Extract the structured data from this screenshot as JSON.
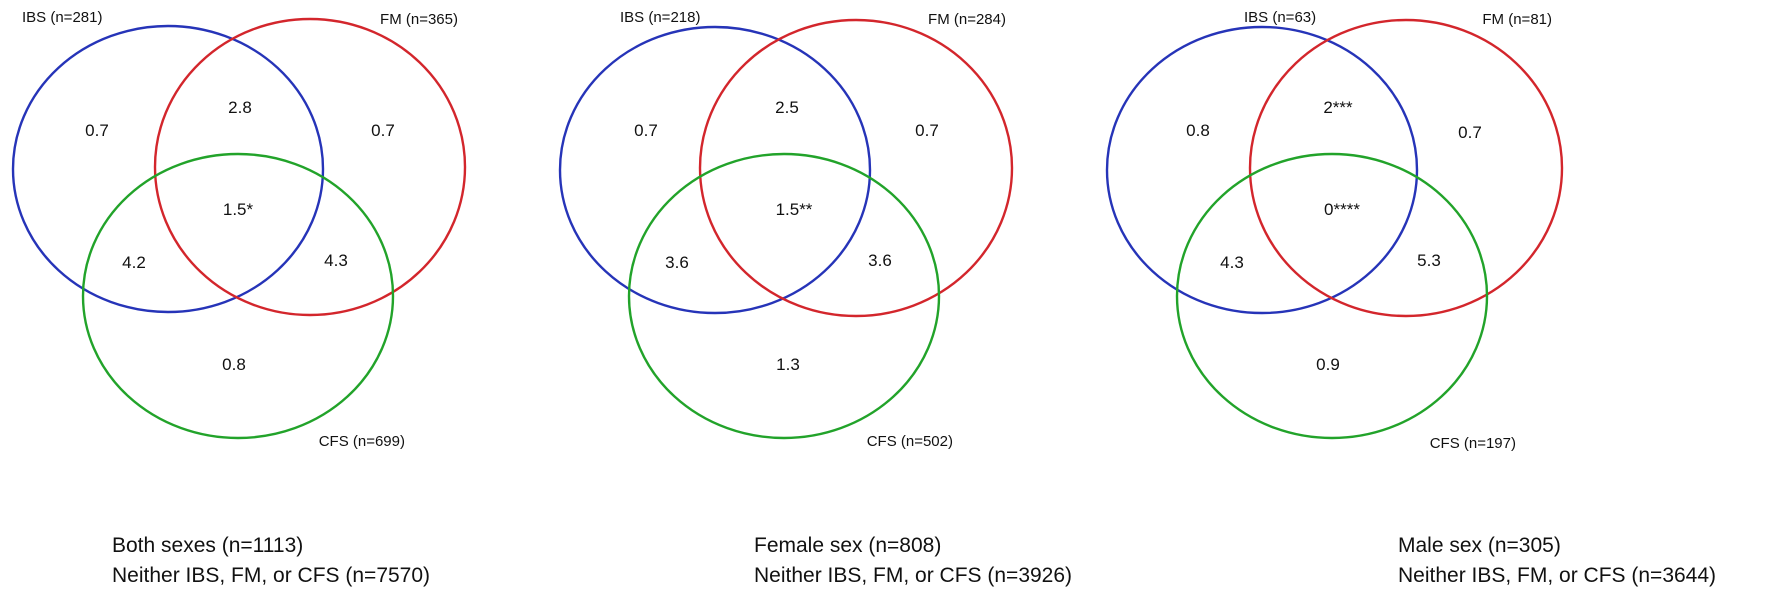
{
  "colors": {
    "ibs": "#2634b8",
    "fm": "#d3262c",
    "cfs": "#22a32a",
    "text": "#111111",
    "background": "#ffffff"
  },
  "panels": [
    {
      "set_labels": {
        "ibs": "IBS (n=281)",
        "fm": "FM (n=365)",
        "cfs": "CFS (n=699)"
      },
      "regions": {
        "ibs_only": "0.7",
        "fm_only": "0.7",
        "cfs_only": "0.8",
        "ibs_fm": "2.8",
        "ibs_cfs": "4.2",
        "fm_cfs": "4.3",
        "all_three": "1.5*"
      },
      "caption": {
        "line1": "Both sexes (n=1113)",
        "line2": "Neither IBS, FM, or CFS (n=7570)"
      }
    },
    {
      "set_labels": {
        "ibs": "IBS (n=218)",
        "fm": "FM (n=284)",
        "cfs": "CFS (n=502)"
      },
      "regions": {
        "ibs_only": "0.7",
        "fm_only": "0.7",
        "cfs_only": "1.3",
        "ibs_fm": "2.5",
        "ibs_cfs": "3.6",
        "fm_cfs": "3.6",
        "all_three": "1.5**"
      },
      "caption": {
        "line1": "Female sex (n=808)",
        "line2": "Neither IBS, FM, or CFS (n=3926)"
      }
    },
    {
      "set_labels": {
        "ibs": "IBS (n=63)",
        "fm": "FM (n=81)",
        "cfs": "CFS (n=197)"
      },
      "regions": {
        "ibs_only": "0.8",
        "fm_only": "0.7",
        "cfs_only": "0.9",
        "ibs_fm": "2***",
        "ibs_cfs": "4.3",
        "fm_cfs": "5.3",
        "all_three": "0****"
      },
      "caption": {
        "line1": "Male sex (n=305)",
        "line2": "Neither IBS, FM, or CFS (n=3644)"
      }
    }
  ]
}
